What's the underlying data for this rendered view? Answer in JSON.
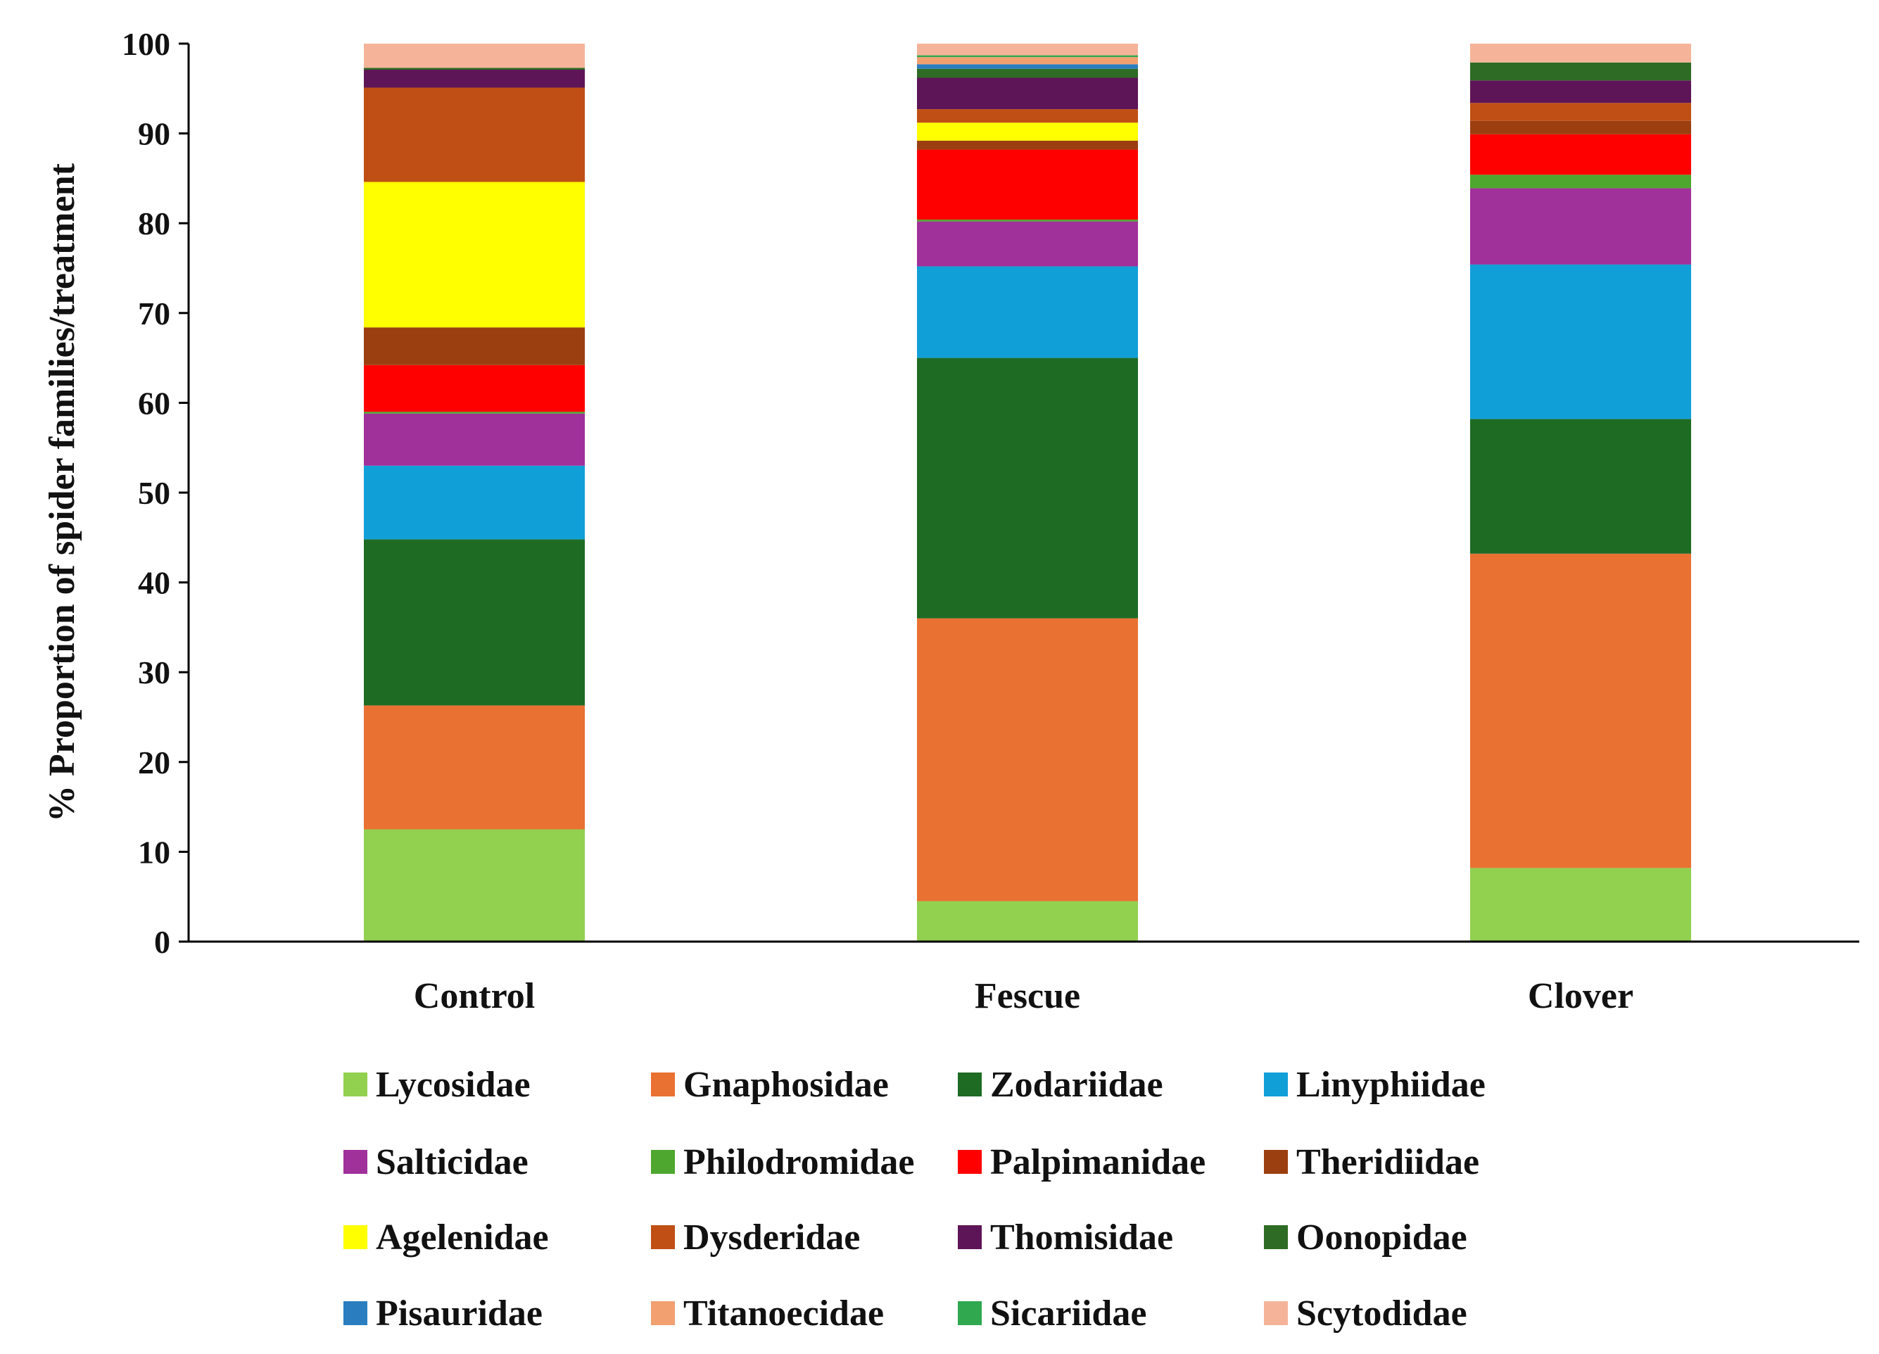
{
  "chart_data": {
    "type": "stacked-bar",
    "title": "",
    "xlabel": "",
    "ylabel": "% Proportion of spider families/treatment",
    "ylim": [
      0,
      100
    ],
    "yticks": [
      0,
      10,
      20,
      30,
      40,
      50,
      60,
      70,
      80,
      90,
      100
    ],
    "grid": false,
    "legend_position": "bottom",
    "categories": [
      "Control",
      "Fescue",
      "Clover"
    ],
    "series": [
      {
        "name": "Lycosidae",
        "color": "#92D050",
        "values": [
          12.5,
          4.5,
          8.2
        ]
      },
      {
        "name": "Gnaphosidae",
        "color": "#E97132",
        "values": [
          13.8,
          31.5,
          35.0
        ]
      },
      {
        "name": "Zodariidae",
        "color": "#1E6B24",
        "values": [
          18.5,
          29.0,
          15.0
        ]
      },
      {
        "name": "Linyphiidae",
        "color": "#119FD8",
        "values": [
          8.2,
          10.2,
          17.2
        ]
      },
      {
        "name": "Salticidae",
        "color": "#A0309A",
        "values": [
          5.8,
          5.0,
          8.5
        ]
      },
      {
        "name": "Philodromidae",
        "color": "#4EA72E",
        "values": [
          0.2,
          0.2,
          1.5
        ]
      },
      {
        "name": "Palpimanidae",
        "color": "#FF0000",
        "values": [
          5.2,
          7.8,
          4.5
        ]
      },
      {
        "name": "Theridiidae",
        "color": "#9C3F10",
        "values": [
          4.2,
          1.0,
          1.5
        ]
      },
      {
        "name": "Agelenidae",
        "color": "#FFFF00",
        "values": [
          16.2,
          2.0,
          0.0
        ]
      },
      {
        "name": "Dysderidae",
        "color": "#BF4F14",
        "values": [
          10.5,
          1.5,
          2.0
        ]
      },
      {
        "name": "Thomisidae",
        "color": "#5E1557",
        "values": [
          2.0,
          3.5,
          2.5
        ]
      },
      {
        "name": "Oonopidae",
        "color": "#2E6B24",
        "values": [
          0.2,
          1.0,
          2.0
        ]
      },
      {
        "name": "Pisauridae",
        "color": "#2A7EC0",
        "values": [
          0.0,
          0.5,
          0.0
        ]
      },
      {
        "name": "Titanoecidae",
        "color": "#F2A070",
        "values": [
          0.0,
          0.8,
          0.0
        ]
      },
      {
        "name": "Sicariidae",
        "color": "#2FA84F",
        "values": [
          0.0,
          0.2,
          0.0
        ]
      },
      {
        "name": "Scytodidae",
        "color": "#F5B49A",
        "values": [
          2.7,
          1.3,
          2.1
        ]
      }
    ]
  }
}
